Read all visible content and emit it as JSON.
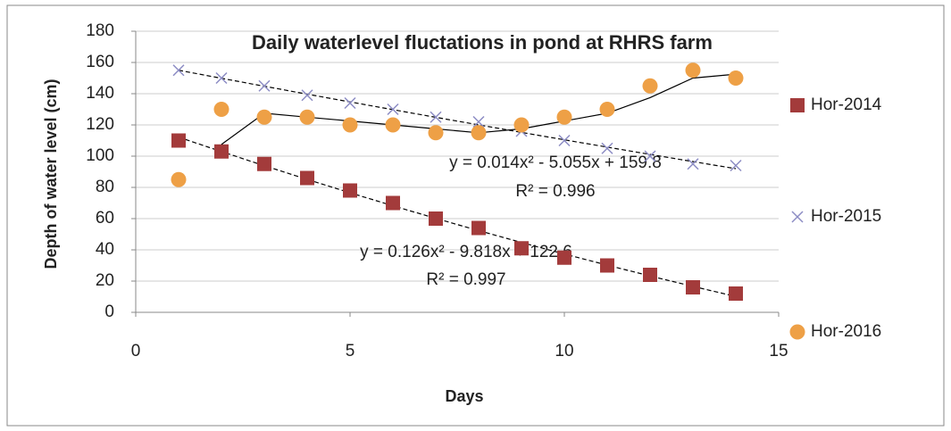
{
  "chart_data": {
    "type": "scatter",
    "title": "Daily waterlevel fluctations in pond at RHRS farm",
    "x_label": "Days",
    "y_label": "Depth of water level (cm)",
    "xlim": [
      0,
      15
    ],
    "xticks": [
      0,
      5,
      10,
      15
    ],
    "ylim": [
      0,
      180
    ],
    "yticks": [
      0,
      20,
      40,
      60,
      80,
      100,
      120,
      140,
      160,
      180
    ],
    "grid": true,
    "legend": "right",
    "x": [
      1,
      2,
      3,
      4,
      5,
      6,
      7,
      8,
      9,
      10,
      11,
      12,
      13,
      14
    ],
    "series": [
      {
        "name": "Hor-2014",
        "color": "#a33b3b",
        "marker": "square",
        "trendline": "polynomial",
        "values": [
          110,
          103,
          95,
          86,
          78,
          70,
          60,
          54,
          41,
          35,
          30,
          24,
          16,
          12
        ]
      },
      {
        "name": "Hor-2015",
        "color": "#8c8cc4",
        "marker": "cross",
        "trendline": "polynomial",
        "values": [
          155,
          150,
          145,
          139,
          134,
          130,
          125,
          122,
          116,
          110,
          105,
          100,
          95,
          94
        ]
      },
      {
        "name": "Hor-2016",
        "color": "#eea046",
        "marker": "circle",
        "trendline": "moving-average",
        "values": [
          85,
          130,
          125,
          125,
          120,
          120,
          115,
          115,
          120,
          125,
          130,
          145,
          155,
          150
        ]
      }
    ],
    "annotations": [
      "y = 0.014x² - 5.055x + 159.8",
      "R² = 0.996",
      "y = 0.126x² - 9.818x + 122.6",
      "R² = 0.997"
    ]
  }
}
